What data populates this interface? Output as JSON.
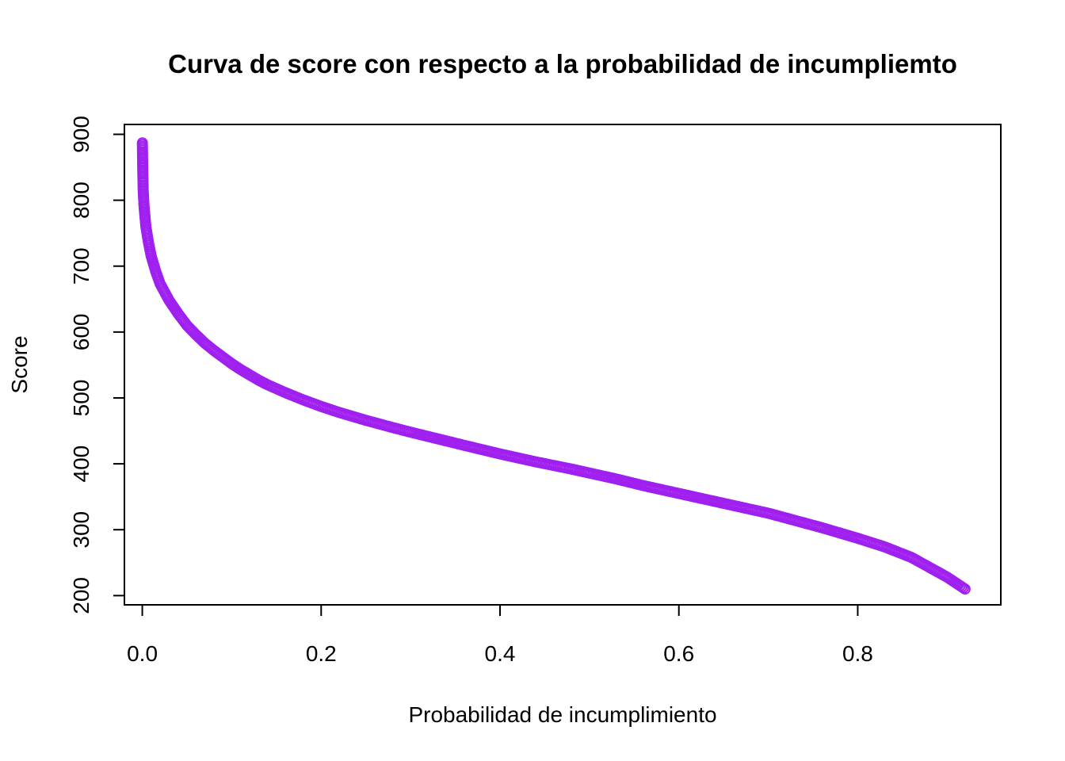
{
  "chart_data": {
    "type": "scatter",
    "title": "Curva de score con respecto a la probabilidad de incumpliemto",
    "xlabel": "Probabilidad de incumplimiento",
    "ylabel": "Score",
    "xlim": [
      -0.02,
      0.96
    ],
    "ylim": [
      186,
      915
    ],
    "xticks": [
      {
        "value": 0.0,
        "label": "0.0"
      },
      {
        "value": 0.2,
        "label": "0.2"
      },
      {
        "value": 0.4,
        "label": "0.4"
      },
      {
        "value": 0.6,
        "label": "0.6"
      },
      {
        "value": 0.8,
        "label": "0.8"
      }
    ],
    "yticks": [
      {
        "value": 200,
        "label": "200"
      },
      {
        "value": 300,
        "label": "300"
      },
      {
        "value": 400,
        "label": "400"
      },
      {
        "value": 500,
        "label": "500"
      },
      {
        "value": 600,
        "label": "600"
      },
      {
        "value": 700,
        "label": "700"
      },
      {
        "value": 800,
        "label": "800"
      },
      {
        "value": 900,
        "label": "900"
      }
    ],
    "marker_color": "#A020F0",
    "grid": false,
    "series": [
      {
        "points": [
          [
            0.0001,
            887
          ],
          [
            0.0003,
            865
          ],
          [
            0.0006,
            840
          ],
          [
            0.001,
            815
          ],
          [
            0.002,
            790
          ],
          [
            0.004,
            760
          ],
          [
            0.007,
            735
          ],
          [
            0.01,
            715
          ],
          [
            0.015,
            692
          ],
          [
            0.02,
            673
          ],
          [
            0.03,
            648
          ],
          [
            0.04,
            628
          ],
          [
            0.05,
            610
          ],
          [
            0.06,
            596
          ],
          [
            0.07,
            583
          ],
          [
            0.08,
            572
          ],
          [
            0.09,
            562
          ],
          [
            0.1,
            552
          ],
          [
            0.11,
            543
          ],
          [
            0.12,
            535
          ],
          [
            0.13,
            527
          ],
          [
            0.14,
            520
          ],
          [
            0.15,
            514
          ],
          [
            0.16,
            508
          ],
          [
            0.18,
            497
          ],
          [
            0.2,
            487
          ],
          [
            0.22,
            478
          ],
          [
            0.25,
            466
          ],
          [
            0.28,
            455
          ],
          [
            0.3,
            448
          ],
          [
            0.33,
            438
          ],
          [
            0.36,
            428
          ],
          [
            0.4,
            415
          ],
          [
            0.44,
            403
          ],
          [
            0.48,
            392
          ],
          [
            0.5,
            386
          ],
          [
            0.53,
            377
          ],
          [
            0.56,
            367
          ],
          [
            0.6,
            355
          ],
          [
            0.63,
            346
          ],
          [
            0.66,
            337
          ],
          [
            0.7,
            325
          ],
          [
            0.73,
            314
          ],
          [
            0.76,
            303
          ],
          [
            0.8,
            287
          ],
          [
            0.83,
            274
          ],
          [
            0.86,
            258
          ],
          [
            0.88,
            243
          ],
          [
            0.9,
            228
          ],
          [
            0.92,
            210
          ]
        ]
      }
    ]
  }
}
